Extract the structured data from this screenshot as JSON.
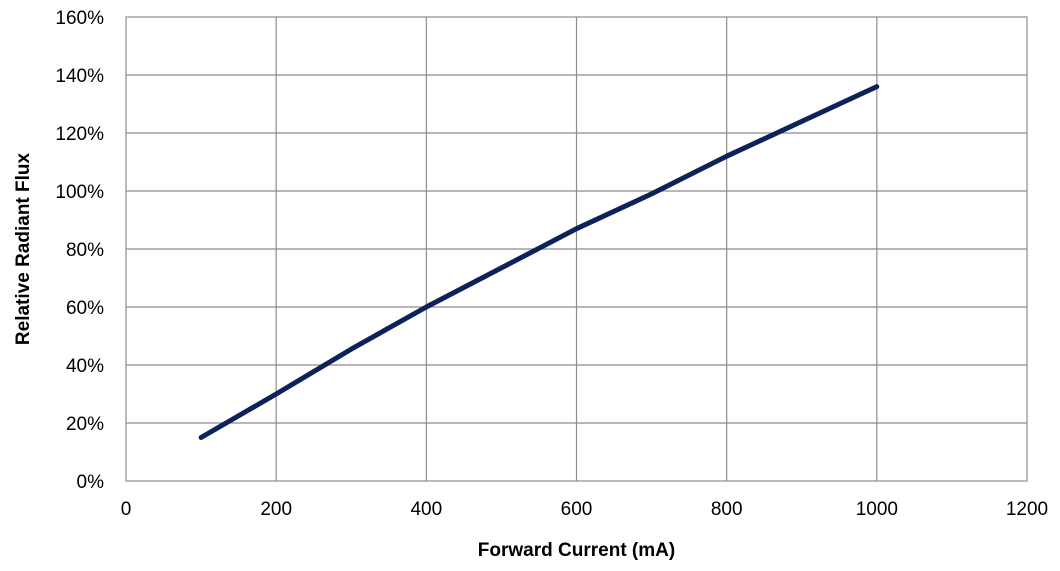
{
  "chart_data": {
    "type": "line",
    "title": "",
    "xlabel": "Forward Current (mA)",
    "ylabel": "Relative Radiant Flux",
    "xlim": [
      0,
      1200
    ],
    "ylim": [
      0,
      1.6
    ],
    "x_ticks": [
      0,
      200,
      400,
      600,
      800,
      1000,
      1200
    ],
    "x_tick_labels": [
      "0",
      "200",
      "400",
      "600",
      "800",
      "1000",
      "1200"
    ],
    "y_ticks": [
      0,
      0.2,
      0.4,
      0.6,
      0.8,
      1.0,
      1.2,
      1.4,
      1.6
    ],
    "y_tick_labels": [
      "0%",
      "20%",
      "40%",
      "60%",
      "80%",
      "100%",
      "120%",
      "140%",
      "160%"
    ],
    "grid": true,
    "legend": "none",
    "series_color": "#0c2259",
    "series": [
      {
        "x": [
          100,
          200,
          300,
          400,
          500,
          600,
          700,
          800,
          900,
          1000
        ],
        "y": [
          0.15,
          0.3,
          0.455,
          0.6,
          0.735,
          0.87,
          0.99,
          1.12,
          1.24,
          1.36
        ]
      }
    ]
  }
}
